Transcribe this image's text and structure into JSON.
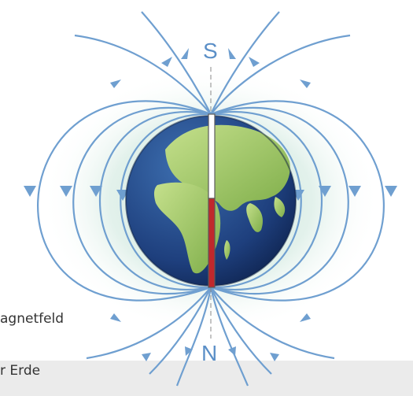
{
  "diagram": {
    "south_pole_label": "S",
    "north_pole_label": "N",
    "caption_line1": "agnetfeld",
    "caption_line2": "r Erde"
  },
  "colors": {
    "field_line": "#6f9fd0",
    "glow": "#b9dccf",
    "ocean": "#1e3f7d",
    "land": "#9fcb63",
    "magnet_north_half": "#c0282c",
    "magnet_south_half": "#ffffff",
    "background": "#ffffff",
    "bottom_strip": "#ebebeb"
  },
  "icons": {
    "earth": "earth-globe-icon",
    "magnet": "bar-magnet-icon",
    "arrow": "field-arrow-icon"
  }
}
